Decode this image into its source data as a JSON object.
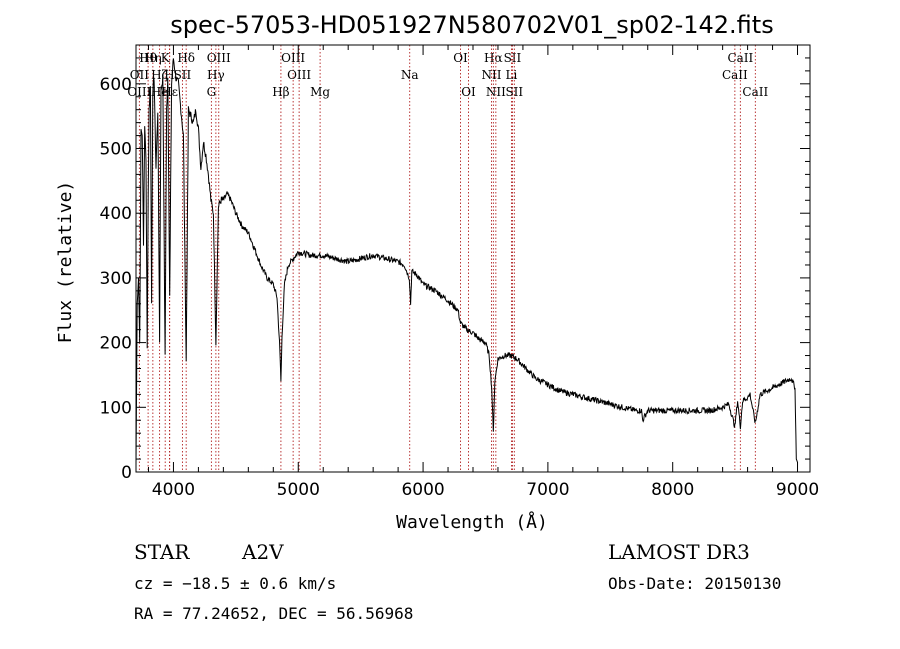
{
  "chart_data": {
    "type": "line",
    "title": "spec-57053-HD051927N580702V01_sp02-142.fits",
    "xlabel": "Wavelength (Å)",
    "ylabel": "Flux (relative)",
    "xlim": [
      3700,
      9100
    ],
    "ylim": [
      0,
      660
    ],
    "xticks": [
      4000,
      5000,
      6000,
      7000,
      8000,
      9000
    ],
    "yticks": [
      0,
      100,
      200,
      300,
      400,
      500,
      600
    ],
    "series": [
      {
        "name": "spectrum",
        "x": [
          3700,
          3710,
          3720,
          3730,
          3740,
          3750,
          3760,
          3770,
          3780,
          3790,
          3798,
          3805,
          3815,
          3825,
          3835,
          3845,
          3860,
          3875,
          3889,
          3900,
          3915,
          3933,
          3945,
          3955,
          3970,
          3985,
          4000,
          4020,
          4040,
          4060,
          4080,
          4102,
          4120,
          4140,
          4160,
          4180,
          4200,
          4220,
          4240,
          4260,
          4280,
          4300,
          4320,
          4340,
          4360,
          4380,
          4400,
          4430,
          4460,
          4500,
          4550,
          4600,
          4650,
          4700,
          4750,
          4800,
          4830,
          4850,
          4861,
          4870,
          4890,
          4920,
          5000,
          5100,
          5200,
          5300,
          5400,
          5500,
          5600,
          5700,
          5800,
          5850,
          5890,
          5900,
          5910,
          5950,
          6000,
          6100,
          6200,
          6280,
          6300,
          6350,
          6400,
          6450,
          6500,
          6530,
          6550,
          6563,
          6575,
          6600,
          6650,
          6700,
          6750,
          6800,
          6900,
          7000,
          7100,
          7200,
          7300,
          7400,
          7500,
          7600,
          7700,
          7750,
          7760,
          7800,
          7900,
          8000,
          8100,
          8200,
          8300,
          8400,
          8450,
          8498,
          8520,
          8542,
          8560,
          8600,
          8620,
          8662,
          8700,
          8750,
          8800,
          8850,
          8900,
          8950,
          8980,
          8990,
          9000
        ],
        "y": [
          10,
          260,
          300,
          200,
          530,
          520,
          350,
          540,
          480,
          190,
          430,
          560,
          600,
          260,
          590,
          610,
          470,
          560,
          200,
          590,
          610,
          180,
          560,
          610,
          270,
          600,
          640,
          610,
          600,
          560,
          520,
          170,
          560,
          550,
          540,
          560,
          530,
          470,
          510,
          490,
          460,
          420,
          400,
          200,
          410,
          420,
          420,
          430,
          420,
          400,
          380,
          370,
          345,
          320,
          300,
          290,
          270,
          200,
          140,
          210,
          290,
          320,
          340,
          335,
          335,
          330,
          325,
          330,
          335,
          330,
          325,
          320,
          300,
          260,
          310,
          305,
          290,
          280,
          265,
          250,
          230,
          220,
          215,
          205,
          200,
          180,
          130,
          60,
          140,
          175,
          180,
          180,
          175,
          165,
          145,
          135,
          125,
          120,
          115,
          110,
          105,
          100,
          95,
          95,
          80,
          95,
          95,
          95,
          95,
          95,
          95,
          100,
          105,
          70,
          110,
          70,
          110,
          115,
          120,
          75,
          120,
          125,
          130,
          135,
          140,
          145,
          130,
          20,
          15
        ]
      }
    ],
    "spectral_lines": [
      {
        "label": "Hθ",
        "wavelength": 3797,
        "row": 1
      },
      {
        "label": "OII",
        "wavelength": 3727,
        "row": 2
      },
      {
        "label": "Hη",
        "wavelength": 3835,
        "row": 1
      },
      {
        "label": "OIII",
        "wavelength": 3727,
        "row": 3
      },
      {
        "label": "Hζ",
        "wavelength": 3889,
        "row": 2
      },
      {
        "label": "He",
        "wavelength": 3889,
        "row": 3
      },
      {
        "label": "K",
        "wavelength": 3934,
        "row": 1
      },
      {
        "label": "H",
        "wavelength": 3968,
        "row": 2
      },
      {
        "label": "Hδ",
        "wavelength": 4102,
        "row": 1
      },
      {
        "label": "SII",
        "wavelength": 4072,
        "row": 2
      },
      {
        "label": "Hε",
        "wavelength": 3970,
        "row": 3
      },
      {
        "label": "OIII",
        "wavelength": 4363,
        "row": 1
      },
      {
        "label": "Hγ",
        "wavelength": 4340,
        "row": 2
      },
      {
        "label": "G",
        "wavelength": 4304,
        "row": 3
      },
      {
        "label": "OIII",
        "wavelength": 4959,
        "row": 1
      },
      {
        "label": "OIII",
        "wavelength": 5007,
        "row": 2
      },
      {
        "label": "Hβ",
        "wavelength": 4861,
        "row": 3
      },
      {
        "label": "Mg",
        "wavelength": 5175,
        "row": 3
      },
      {
        "label": "Na",
        "wavelength": 5893,
        "row": 2
      },
      {
        "label": "OI",
        "wavelength": 6300,
        "row": 1
      },
      {
        "label": "OI",
        "wavelength": 6364,
        "row": 3
      },
      {
        "label": "Hα",
        "wavelength": 6563,
        "row": 1
      },
      {
        "label": "SII",
        "wavelength": 6716,
        "row": 1
      },
      {
        "label": "NII",
        "wavelength": 6548,
        "row": 2
      },
      {
        "label": "Li",
        "wavelength": 6708,
        "row": 2
      },
      {
        "label": "NII",
        "wavelength": 6583,
        "row": 3
      },
      {
        "label": "SII",
        "wavelength": 6731,
        "row": 3
      },
      {
        "label": "CaII",
        "wavelength": 8542,
        "row": 1
      },
      {
        "label": "CaII",
        "wavelength": 8498,
        "row": 2
      },
      {
        "label": "CaII",
        "wavelength": 8662,
        "row": 3
      }
    ]
  },
  "info": {
    "object_type": "STAR",
    "subclass": "A2V",
    "survey": "LAMOST DR3",
    "redshift": "cz = −18.5 ± 0.6 km/s",
    "obs_date": "Obs-Date: 20150130",
    "coords": "RA =  77.24652, DEC =  56.56968"
  }
}
